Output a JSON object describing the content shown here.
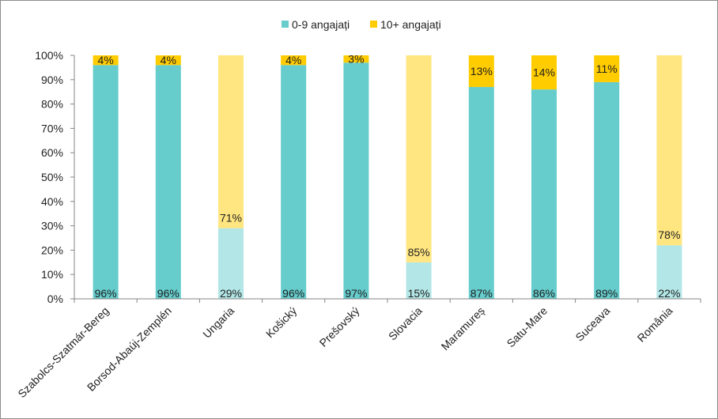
{
  "chart_data": {
    "type": "bar",
    "stacked": true,
    "percent_stacked": true,
    "categories": [
      "Szabolcs-Szatmár-Bereg",
      "Borsod-Abaúj-Zemplén",
      "Ungaria",
      "Košický",
      "Prešovský",
      "Slovacia",
      "Maramureș",
      "Satu-Mare",
      "Suceava",
      "România"
    ],
    "series": [
      {
        "name": "0-9 angajați",
        "values": [
          96,
          96,
          29,
          96,
          97,
          15,
          87,
          86,
          89,
          22
        ],
        "labels": [
          "96%",
          "96%",
          "29%",
          "96%",
          "97%",
          "15%",
          "87%",
          "86%",
          "89%",
          "22%"
        ]
      },
      {
        "name": "10+ angajați",
        "values": [
          4,
          4,
          71,
          4,
          3,
          85,
          13,
          14,
          11,
          78
        ],
        "labels": [
          "4%",
          "4%",
          "71%",
          "4%",
          "3%",
          "85%",
          "13%",
          "14%",
          "11%",
          "78%"
        ]
      }
    ],
    "highlight_categories": [
      "Ungaria",
      "Slovacia",
      "România"
    ],
    "yticks": [
      "0%",
      "10%",
      "20%",
      "30%",
      "40%",
      "50%",
      "60%",
      "70%",
      "80%",
      "90%",
      "100%"
    ],
    "ylim": [
      0,
      100
    ],
    "grid": false,
    "legend_position": "top"
  },
  "colors": {
    "series_0": "#66cccc",
    "series_1": "#ffcc00",
    "series_0_light": "#b3e6e6",
    "series_1_light": "#ffe680",
    "axis": "#868686"
  }
}
